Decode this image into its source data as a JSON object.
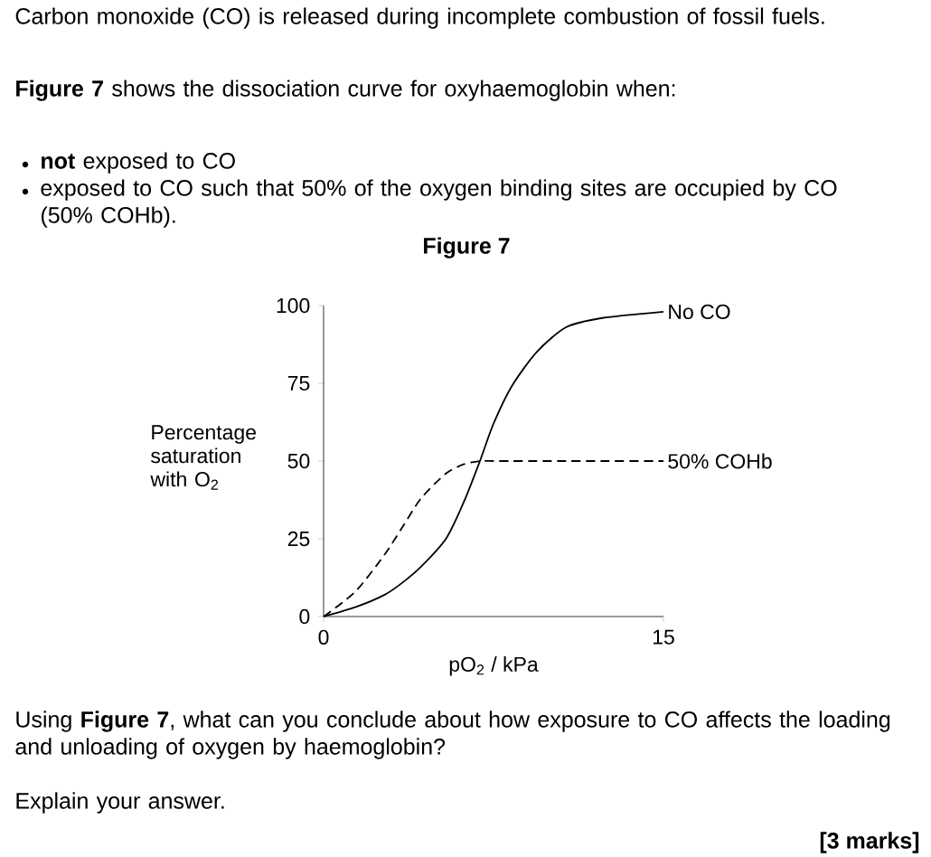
{
  "chart_data": {
    "type": "line",
    "title": "Figure 7",
    "xlabel": "pO$_{2}$ / kPa",
    "ylabel": "Percentage saturation with O$_{2}$",
    "x": [
      0,
      1.4,
      2.7,
      3.5,
      4.3,
      5.4,
      6.2,
      6.9,
      7.5,
      8.3,
      9.4,
      10.7,
      12.3,
      15
    ],
    "series": [
      {
        "name": "No CO",
        "color": "#000000",
        "line_style": "solid",
        "values": [
          0,
          3,
          7,
          11,
          16,
          25,
          37,
          50,
          62,
          74,
          85,
          93,
          96,
          98
        ]
      },
      {
        "name": "50% COHb",
        "color": "#000000",
        "line_style": "dashed",
        "values": [
          0,
          8,
          20,
          29,
          38,
          46,
          49,
          50,
          50,
          50,
          50,
          50,
          50,
          50
        ]
      }
    ],
    "xlim": [
      0,
      15
    ],
    "ylim": [
      0,
      100
    ],
    "xticks": [
      0,
      15
    ],
    "yticks": [
      0,
      25,
      50,
      75,
      100
    ],
    "grid": false,
    "legend": false,
    "marker": "none",
    "annotations": [
      "Carbon monoxide (CO) is released during incomplete combustion of fossil fuels.",
      "**Figure 7** shows the dissociation curve for oxyhaemoglobin when:",
      "**not** exposed to CO",
      "exposed to CO such that 50% of the oxygen binding sites are occupied by CO (50% COHb).",
      "Using **Figure 7**, what can you conclude about how exposure to CO affects the loading and unloading of oxygen by haemoglobin?",
      "Explain your answer.",
      "[3 marks]"
    ]
  }
}
